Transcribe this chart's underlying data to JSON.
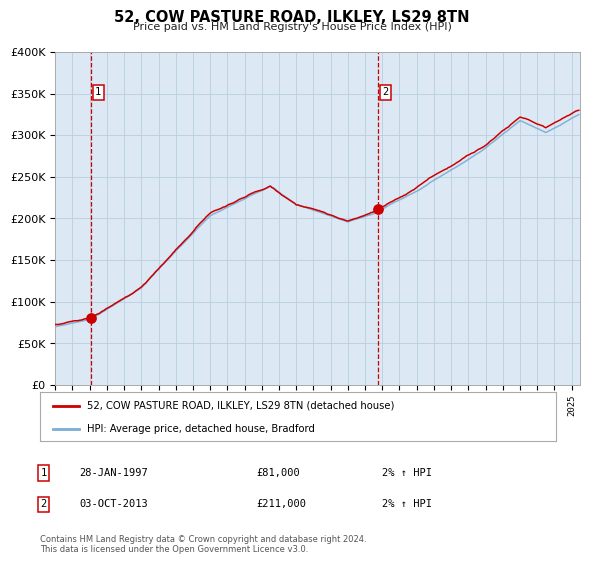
{
  "title": "52, COW PASTURE ROAD, ILKLEY, LS29 8TN",
  "subtitle": "Price paid vs. HM Land Registry's House Price Index (HPI)",
  "fig_bg_color": "#ffffff",
  "plot_bg_color": "#dce9f5",
  "grid_color": "#b8cfe0",
  "red_line_color": "#cc0000",
  "blue_line_color": "#7aadd4",
  "dashed_line_color": "#cc0000",
  "sale1_date_num": 1997.07,
  "sale1_price": 81000,
  "sale2_date_num": 2013.75,
  "sale2_price": 211000,
  "xmin": 1995,
  "xmax": 2025.5,
  "ymin": 0,
  "ymax": 400000,
  "yticks": [
    0,
    50000,
    100000,
    150000,
    200000,
    250000,
    300000,
    350000,
    400000
  ],
  "ytick_labels": [
    "£0",
    "£50K",
    "£100K",
    "£150K",
    "£200K",
    "£250K",
    "£300K",
    "£350K",
    "£400K"
  ],
  "legend_red_label": "52, COW PASTURE ROAD, ILKLEY, LS29 8TN (detached house)",
  "legend_blue_label": "HPI: Average price, detached house, Bradford",
  "annot1_date": "28-JAN-1997",
  "annot1_price": "£81,000",
  "annot1_hpi": "2% ↑ HPI",
  "annot2_date": "03-OCT-2013",
  "annot2_price": "£211,000",
  "annot2_hpi": "2% ↑ HPI",
  "footer": "Contains HM Land Registry data © Crown copyright and database right 2024.\nThis data is licensed under the Open Government Licence v3.0."
}
